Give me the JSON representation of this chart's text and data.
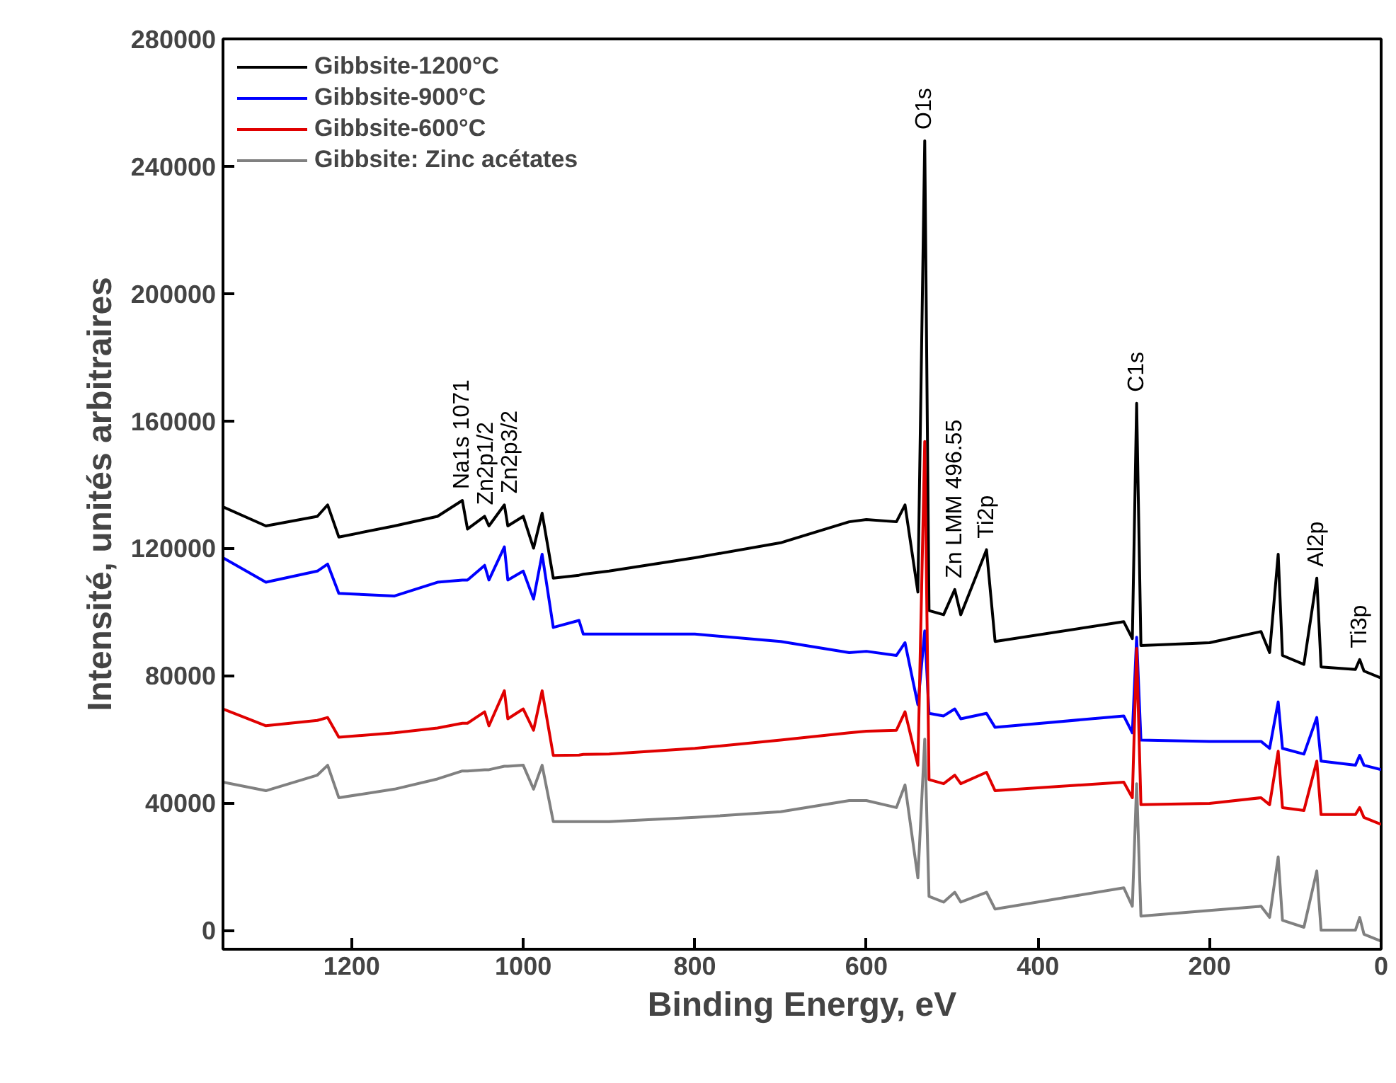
{
  "chart_data": {
    "type": "line",
    "xlabel": "Binding Energy, eV",
    "ylabel": "Intensité, unités arbitraires",
    "xlim": [
      1350,
      0
    ],
    "xticks": [
      1200,
      1000,
      800,
      600,
      400,
      200,
      0
    ],
    "ylim": [
      -6000,
      280000
    ],
    "yticks": [
      0,
      40000,
      80000,
      120000,
      160000,
      200000,
      240000,
      280000
    ],
    "grid": false,
    "legend": "top left",
    "marker": "none",
    "line_style": "solid",
    "x": [
      1350,
      1300,
      1240,
      1228,
      1215,
      1150,
      1100,
      1071,
      1065,
      1045,
      1040,
      1022,
      1018,
      1000,
      988,
      978,
      965,
      935,
      930,
      900,
      800,
      700,
      620,
      600,
      565,
      555,
      540,
      532,
      527,
      510,
      497,
      490,
      460,
      450,
      300,
      290,
      285,
      280,
      200,
      140,
      130,
      120,
      115,
      90,
      75,
      70,
      30,
      25,
      20,
      0
    ],
    "series": [
      {
        "name": "Gibbsite-1200°C",
        "color": "#000000",
        "values": [
          133000,
          127000,
          130000,
          133600,
          123500,
          127000,
          130000,
          135000,
          126000,
          130000,
          127000,
          133600,
          127000,
          130000,
          120000,
          131000,
          110600,
          111500,
          111800,
          112800,
          117000,
          121700,
          128300,
          129000,
          128300,
          133600,
          106200,
          248000,
          100400,
          99100,
          107000,
          99100,
          119500,
          90700,
          96900,
          91600,
          165500,
          89400,
          90300,
          93800,
          87200,
          118100,
          86300,
          83500,
          110600,
          82700,
          81900,
          85000,
          81400,
          79200
        ]
      },
      {
        "name": "Gibbsite-900°C",
        "color": "#0000ff",
        "values": [
          117000,
          109300,
          112800,
          115000,
          105800,
          105000,
          109300,
          110000,
          110000,
          114600,
          110000,
          120400,
          110000,
          112800,
          104000,
          118100,
          95100,
          97300,
          93000,
          93000,
          93000,
          90700,
          87200,
          87600,
          86300,
          90300,
          70800,
          94000,
          68100,
          67300,
          69500,
          66400,
          68100,
          63700,
          67300,
          62000,
          92000,
          59700,
          59300,
          59300,
          57100,
          71700,
          57100,
          55300,
          66800,
          53100,
          51800,
          54900,
          51800,
          50400
        ]
      },
      {
        "name": "Gibbsite-600°C",
        "color": "#e00000",
        "values": [
          69500,
          64200,
          65900,
          66800,
          60600,
          62000,
          63500,
          65000,
          65000,
          68600,
          64200,
          75200,
          66400,
          69500,
          62800,
          75200,
          54900,
          55000,
          55200,
          55300,
          57100,
          59700,
          62000,
          62500,
          62800,
          68600,
          51800,
          153500,
          47300,
          46000,
          48700,
          46000,
          49600,
          43800,
          46500,
          41600,
          88500,
          39400,
          39800,
          41600,
          39400,
          56200,
          38500,
          37600,
          53100,
          36300,
          36300,
          38500,
          35400,
          33200
        ]
      },
      {
        "name": "Gibbsite: Zinc acétates",
        "color": "#808080",
        "values": [
          46500,
          43800,
          48700,
          51800,
          41600,
          44300,
          47500,
          50000,
          50000,
          50400,
          50400,
          51500,
          51500,
          51800,
          44300,
          51800,
          34100,
          34100,
          34100,
          34100,
          35400,
          37200,
          40700,
          40700,
          38500,
          45600,
          16400,
          60000,
          10600,
          8800,
          11900,
          8800,
          11900,
          6600,
          13300,
          7500,
          46000,
          4400,
          6200,
          7500,
          4000,
          23000,
          3100,
          900,
          18600,
          0,
          0,
          4000,
          -1300,
          -3500
        ]
      }
    ],
    "annotations": [
      {
        "text": "O1s",
        "x": 532,
        "y": 248000
      },
      {
        "text": "Na1s 1071",
        "x": 1071,
        "y": 135000
      },
      {
        "text": "Zn2p1/2",
        "x": 1045,
        "y": 130000
      },
      {
        "text": "Zn2p3/2",
        "x": 1022,
        "y": 133600
      },
      {
        "text": "Zn LMM 496.55",
        "x": 497,
        "y": 107000
      },
      {
        "text": "Ti2p",
        "x": 460,
        "y": 119500
      },
      {
        "text": "C1s",
        "x": 285,
        "y": 165500
      },
      {
        "text": "Al2p",
        "x": 75,
        "y": 110600
      },
      {
        "text": "Ti3p",
        "x": 25,
        "y": 85000
      }
    ]
  }
}
